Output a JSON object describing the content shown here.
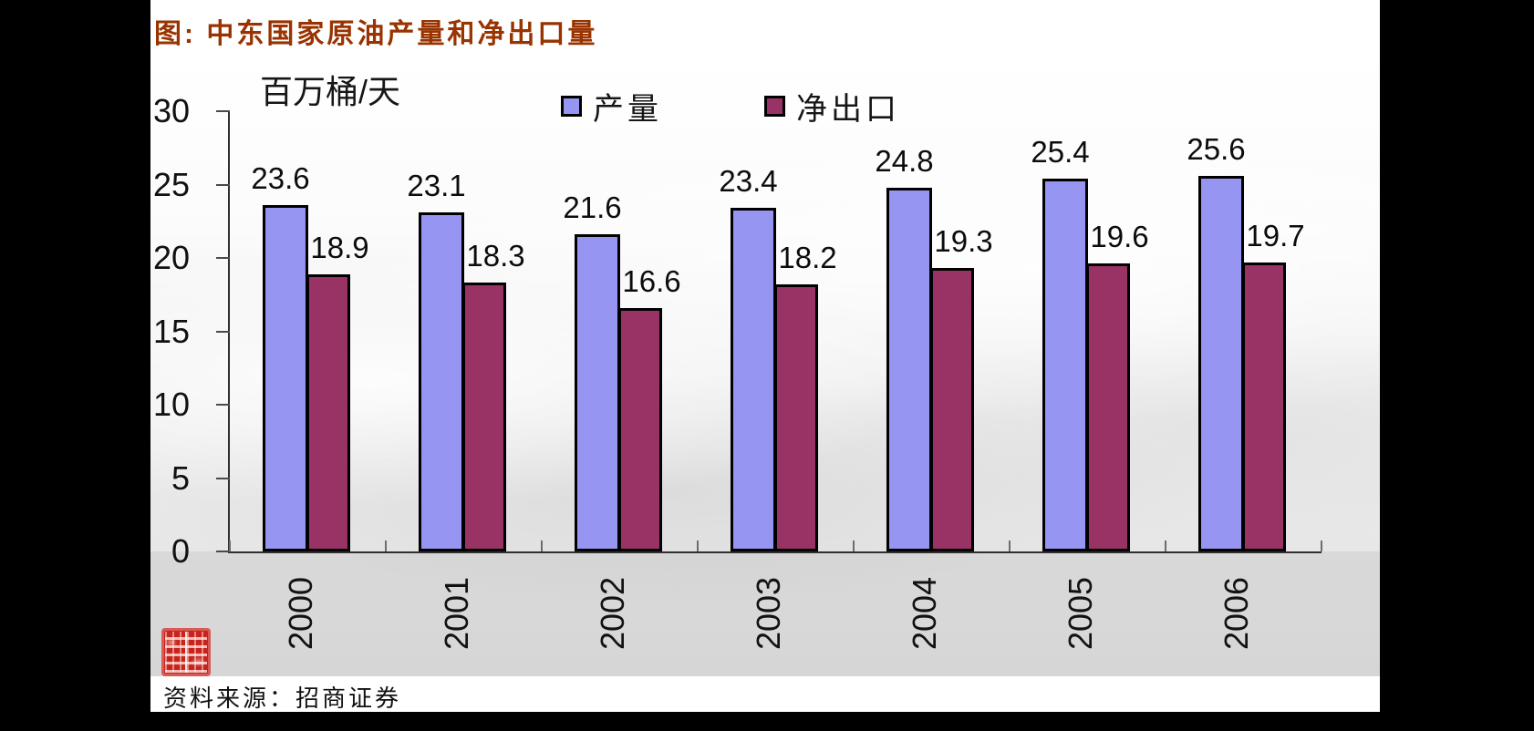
{
  "title": "图: 中东国家原油产量和净出口量",
  "source": "资料来源：招商证券",
  "colors": {
    "title_accent": "#993300",
    "bar_production": "#9795f2",
    "bar_net_export": "#993366",
    "seal_red": "#c8231d"
  },
  "icons": {
    "seal": "red-seal-stamp"
  },
  "chart_data": {
    "type": "bar",
    "title": "图: 中东国家原油产量和净出口量",
    "unit_label": "百万桶/天",
    "xlabel": "",
    "ylabel": "百万桶/天",
    "ylim": [
      0,
      30
    ],
    "yticks": [
      0,
      5,
      10,
      15,
      20,
      25,
      30
    ],
    "grid": false,
    "legend_position": "top",
    "categories": [
      "2000",
      "2001",
      "2002",
      "2003",
      "2004",
      "2005",
      "2006"
    ],
    "series": [
      {
        "name": "产量",
        "color": "#9795f2",
        "values": [
          23.6,
          23.1,
          21.6,
          23.4,
          24.8,
          25.4,
          25.6
        ]
      },
      {
        "name": "净出口",
        "color": "#993366",
        "values": [
          18.9,
          18.3,
          16.6,
          18.2,
          19.3,
          19.6,
          19.7
        ]
      }
    ]
  }
}
